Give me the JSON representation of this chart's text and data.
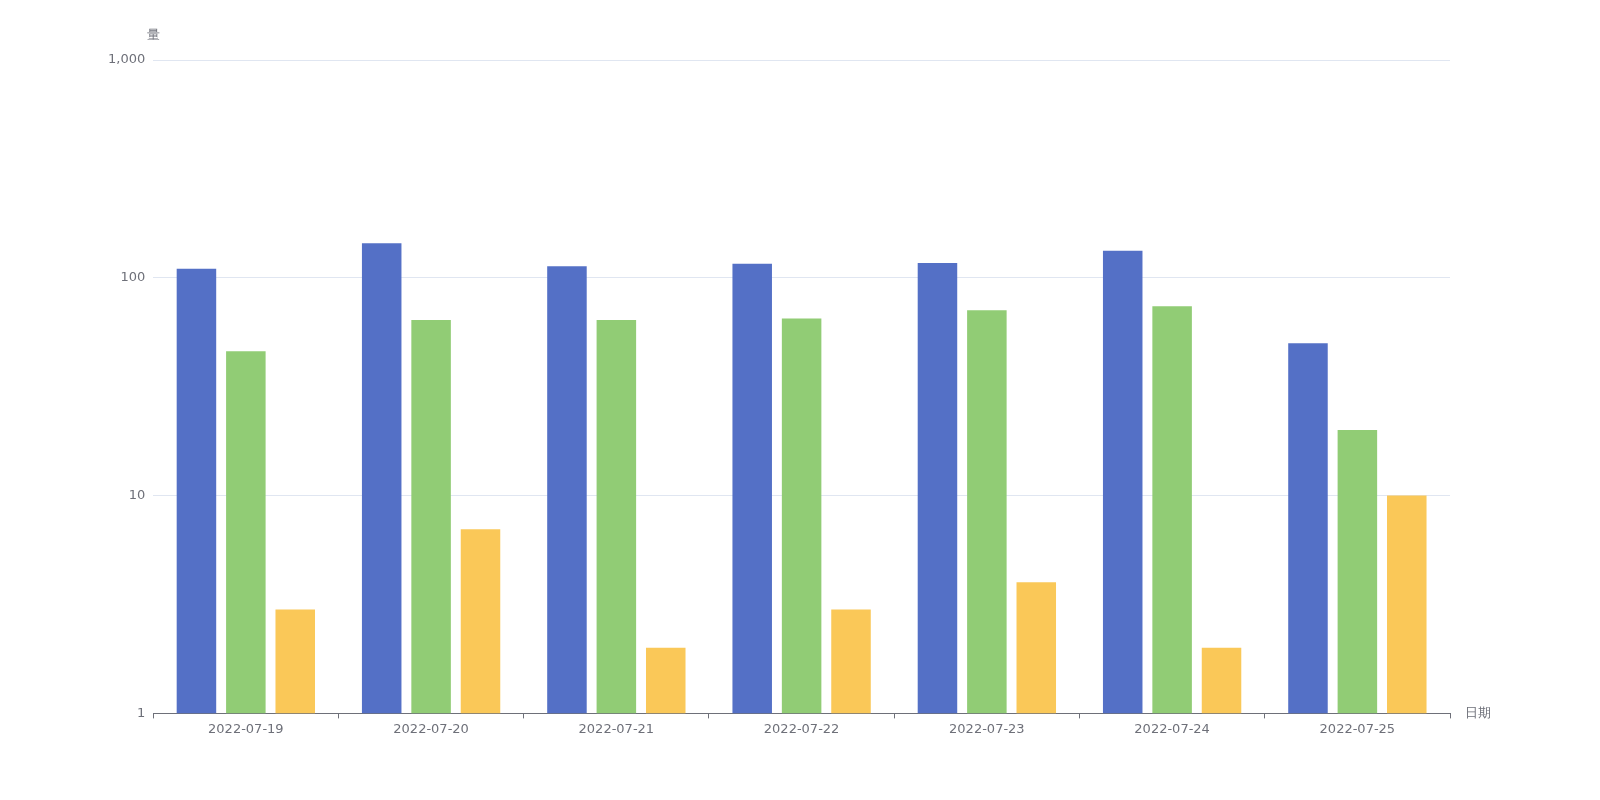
{
  "chart_data": {
    "type": "bar",
    "xlabel": "日期",
    "ylabel": "量",
    "categories": [
      "2022-07-19",
      "2022-07-20",
      "2022-07-21",
      "2022-07-22",
      "2022-07-23",
      "2022-07-24",
      "2022-07-25"
    ],
    "series": [
      {
        "color": "#5470c6",
        "values": [
          110,
          144,
          113,
          116,
          117,
          133,
          50
        ]
      },
      {
        "color": "#91cc75",
        "values": [
          46,
          64,
          64,
          65,
          71,
          74,
          20
        ]
      },
      {
        "color": "#fac858",
        "values": [
          3,
          7,
          2,
          3,
          4,
          2,
          10
        ]
      }
    ],
    "log": "y",
    "ylim": [
      1,
      1000
    ],
    "yticks": [
      1,
      10,
      100,
      {
        "value": 1000,
        "label": "1,000"
      }
    ],
    "grid": "y"
  }
}
